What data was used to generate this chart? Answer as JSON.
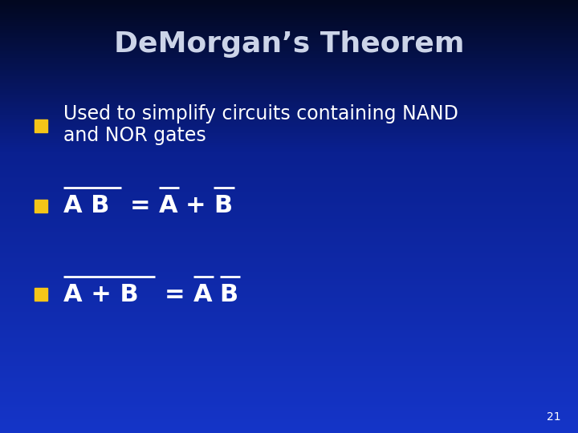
{
  "title": "DeMorgan’s Theorem",
  "title_color": "#ccd4e8",
  "bg_color_top": "#020820",
  "bg_color_mid": "#0a2090",
  "bg_color_bottom": "#1535c8",
  "bullet_color": "#f5c518",
  "text_color": "#ffffff",
  "slide_number": "21",
  "bullet1_line1": "Used to simplify circuits containing NAND",
  "bullet1_line2": "and NOR gates",
  "title_fontsize": 26,
  "bullet_fontsize": 17,
  "eq_fontsize": 22,
  "slide_num_fontsize": 10
}
